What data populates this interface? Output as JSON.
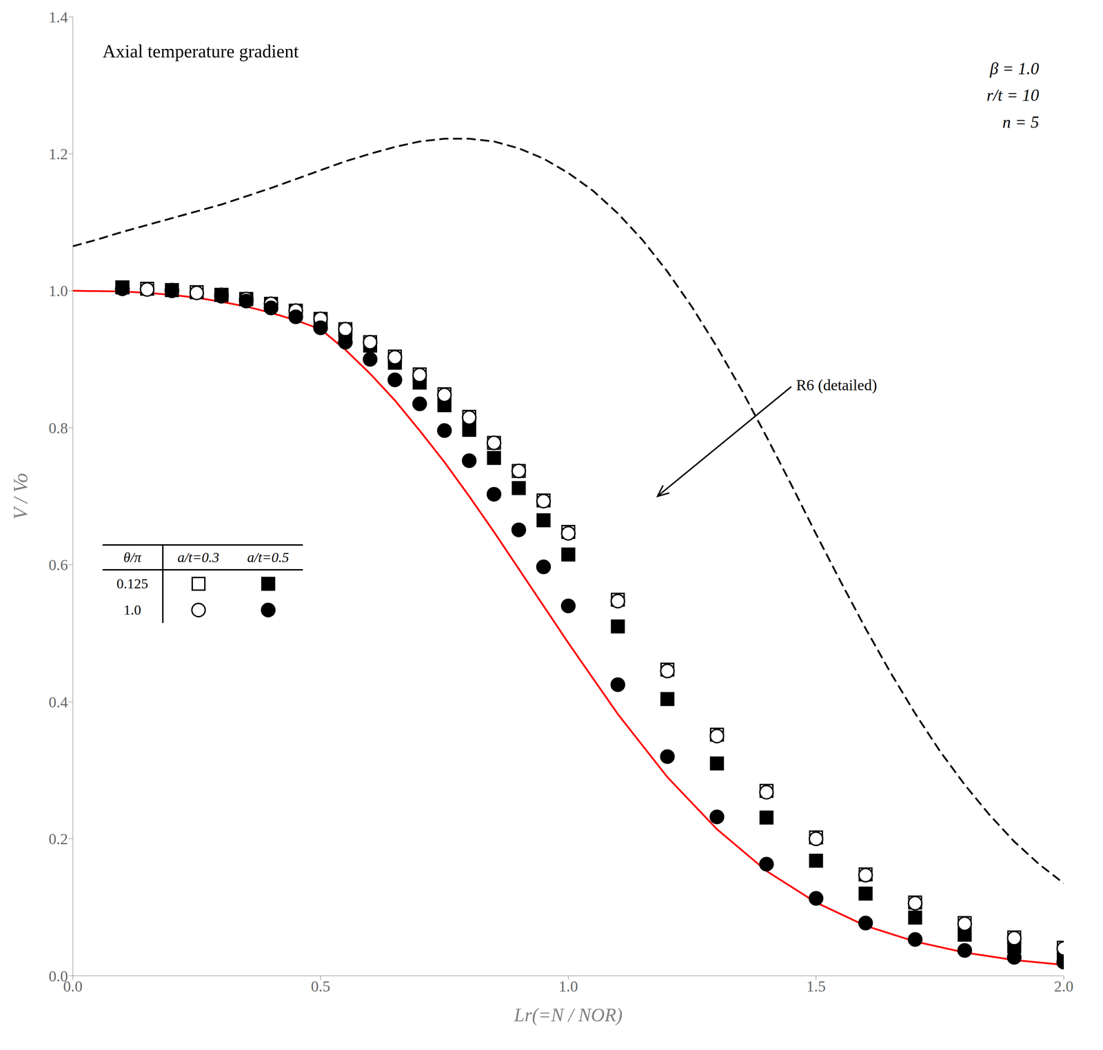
{
  "chart_data": {
    "type": "line",
    "title": "Axial temperature gradient",
    "x_label": "Lr(=N / NOR)",
    "y_label": "V / Vo",
    "xlim": [
      0.0,
      2.0
    ],
    "ylim": [
      0.0,
      1.4
    ],
    "xticks": [
      {
        "value": 0.0,
        "label": "0.0"
      },
      0.5,
      {
        "value": 1.0,
        "label": "1.0"
      },
      1.5,
      {
        "value": 2.0,
        "label": "2.0"
      }
    ],
    "yticks": [
      {
        "value": 0.0,
        "label": "0.0"
      },
      0.2,
      0.4,
      0.6,
      0.8,
      {
        "value": 1.0,
        "label": "1.0"
      },
      1.2,
      1.4
    ],
    "grid": false,
    "series": [
      {
        "type": "line",
        "color": "red",
        "line_style": "solid",
        "x": [
          0.0,
          0.05,
          0.1,
          0.15,
          0.2,
          0.25,
          0.3,
          0.35,
          0.4,
          0.45,
          0.5,
          0.55,
          0.6,
          0.65,
          0.7,
          0.75,
          0.8,
          0.85,
          0.9,
          0.95,
          1.0,
          1.1,
          1.2,
          1.3,
          1.4,
          1.5,
          1.6,
          1.7,
          1.8,
          1.9,
          2.0
        ],
        "values": [
          1.0,
          0.9995,
          0.999,
          0.997,
          0.994,
          0.99,
          0.984,
          0.977,
          0.968,
          0.957,
          0.944,
          0.914,
          0.879,
          0.84,
          0.796,
          0.75,
          0.7,
          0.648,
          0.594,
          0.54,
          0.486,
          0.382,
          0.29,
          0.214,
          0.153,
          0.107,
          0.073,
          0.05,
          0.034,
          0.023,
          0.016
        ]
      },
      {
        "type": "line",
        "color": "black",
        "line_style": "dashed",
        "x": [
          0.0,
          0.05,
          0.1,
          0.15,
          0.2,
          0.25,
          0.3,
          0.35,
          0.4,
          0.45,
          0.5,
          0.55,
          0.6,
          0.65,
          0.7,
          0.75,
          0.8,
          0.85,
          0.9,
          0.95,
          1.0,
          1.05,
          1.1,
          1.15,
          1.2,
          1.25,
          1.3,
          1.35,
          1.4,
          1.45,
          1.5,
          1.55,
          1.6,
          1.65,
          1.7,
          1.75,
          1.8,
          1.85,
          1.9,
          1.95,
          2.0
        ],
        "values": [
          1.065,
          1.075,
          1.086,
          1.096,
          1.106,
          1.116,
          1.126,
          1.138,
          1.15,
          1.163,
          1.176,
          1.189,
          1.2,
          1.21,
          1.218,
          1.222,
          1.222,
          1.218,
          1.208,
          1.193,
          1.172,
          1.146,
          1.113,
          1.074,
          1.028,
          0.976,
          0.918,
          0.855,
          0.787,
          0.717,
          0.645,
          0.575,
          0.507,
          0.443,
          0.383,
          0.328,
          0.279,
          0.235,
          0.196,
          0.163,
          0.135
        ]
      },
      {
        "type": "scatter",
        "color": "black",
        "marker": "open_square",
        "x": [
          0.1,
          0.15,
          0.2,
          0.25,
          0.3,
          0.35,
          0.4,
          0.45,
          0.5,
          0.55,
          0.6,
          0.65,
          0.7,
          0.75,
          0.8,
          0.85,
          0.9,
          0.95,
          1.0,
          1.1,
          1.2,
          1.3,
          1.4,
          1.5,
          1.6,
          1.7,
          1.8,
          1.9,
          2.0
        ],
        "values": [
          1.005,
          1.003,
          1.001,
          0.998,
          0.994,
          0.988,
          0.981,
          0.971,
          0.959,
          0.944,
          0.925,
          0.904,
          0.878,
          0.849,
          0.816,
          0.778,
          0.737,
          0.694,
          0.648,
          0.549,
          0.447,
          0.352,
          0.27,
          0.202,
          0.148,
          0.107,
          0.077,
          0.056,
          0.041
        ]
      },
      {
        "type": "scatter",
        "color": "black",
        "marker": "filled_square",
        "x": [
          0.1,
          0.2,
          0.3,
          0.35,
          0.4,
          0.45,
          0.5,
          0.55,
          0.6,
          0.65,
          0.7,
          0.75,
          0.8,
          0.85,
          0.9,
          0.95,
          1.0,
          1.1,
          1.2,
          1.3,
          1.4,
          1.5,
          1.6,
          1.7,
          1.8,
          1.9,
          2.0
        ],
        "values": [
          1.005,
          1.001,
          0.994,
          0.988,
          0.98,
          0.97,
          0.957,
          0.94,
          0.92,
          0.895,
          0.866,
          0.833,
          0.797,
          0.756,
          0.712,
          0.665,
          0.615,
          0.51,
          0.404,
          0.31,
          0.231,
          0.168,
          0.12,
          0.085,
          0.06,
          0.043,
          0.031
        ]
      },
      {
        "type": "scatter",
        "color": "black",
        "marker": "open_circle",
        "x": [
          0.1,
          0.15,
          0.2,
          0.25,
          0.3,
          0.35,
          0.4,
          0.45,
          0.5,
          0.55,
          0.6,
          0.65,
          0.7,
          0.75,
          0.8,
          0.85,
          0.9,
          0.95,
          1.0,
          1.1,
          1.2,
          1.3,
          1.4,
          1.5,
          1.6,
          1.7,
          1.8,
          1.9,
          2.0
        ],
        "values": [
          1.003,
          1.002,
          1.0,
          0.997,
          0.994,
          0.988,
          0.981,
          0.971,
          0.959,
          0.944,
          0.925,
          0.903,
          0.877,
          0.848,
          0.815,
          0.778,
          0.737,
          0.693,
          0.646,
          0.547,
          0.445,
          0.35,
          0.268,
          0.2,
          0.147,
          0.106,
          0.076,
          0.055,
          0.04
        ]
      },
      {
        "type": "scatter",
        "color": "black",
        "marker": "filled_circle",
        "x": [
          0.1,
          0.2,
          0.3,
          0.35,
          0.4,
          0.45,
          0.5,
          0.55,
          0.6,
          0.65,
          0.7,
          0.75,
          0.8,
          0.85,
          0.9,
          0.95,
          1.0,
          1.1,
          1.2,
          1.3,
          1.4,
          1.5,
          1.6,
          1.7,
          1.8,
          1.9,
          2.0
        ],
        "values": [
          1.003,
          1.001,
          0.992,
          0.985,
          0.975,
          0.962,
          0.946,
          0.925,
          0.9,
          0.87,
          0.835,
          0.796,
          0.752,
          0.703,
          0.651,
          0.597,
          0.54,
          0.425,
          0.32,
          0.232,
          0.163,
          0.113,
          0.077,
          0.053,
          0.037,
          0.027,
          0.02
        ]
      }
    ],
    "annotations": [
      {
        "text": "β = 1.0"
      },
      {
        "text": "r/t = 10"
      },
      {
        "text": "n = 5"
      },
      {
        "text": "R6 (detailed)",
        "x": 1.45,
        "y": 0.86,
        "arrow_x": 1.18,
        "arrow_y": 0.7
      }
    ],
    "legend_table": {
      "header": [
        "θ/π",
        "a/t=0.3",
        "a/t=0.5"
      ],
      "rows": [
        {
          "label": "0.125",
          "markers": [
            "open_square",
            "filled_square"
          ]
        },
        {
          "label": "1.0",
          "markers": [
            "open_circle",
            "filled_circle"
          ]
        }
      ]
    }
  }
}
